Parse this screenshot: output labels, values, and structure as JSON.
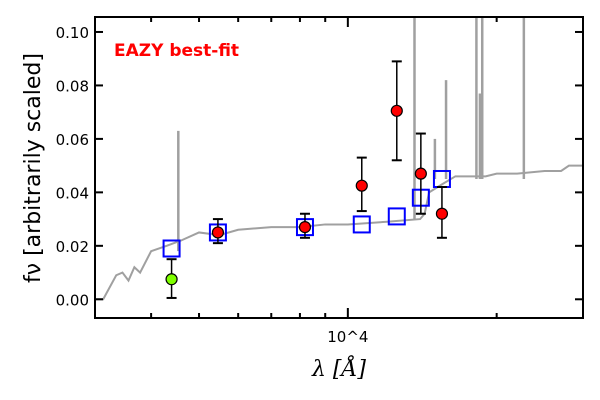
{
  "chart_data": {
    "type": "scatter",
    "title": "",
    "annotation": "EAZY best-fit",
    "xlabel": "λ [Å]",
    "ylabel": "fν [arbitrarily scaled]",
    "xscale": "log",
    "xlim": [
      3080,
      29900
    ],
    "ylim": [
      -0.007,
      0.1056
    ],
    "yticks": [
      0.0,
      0.02,
      0.04,
      0.06,
      0.08,
      0.1
    ],
    "ytick_labels": [
      "0.00",
      "0.02",
      "0.04",
      "0.06",
      "0.08",
      "0.10"
    ],
    "xtick_major_label": "10^4",
    "xticks_minor": [
      4000,
      5000,
      6000,
      7000,
      8000,
      9000,
      20000
    ],
    "colors": {
      "model": "#a0a0a0",
      "photometry": "#ff0000",
      "lowpoint": "#7fff00",
      "model_flux": "#0000ff",
      "annotation": "#ff0000"
    },
    "model_continuum": [
      [
        3080,
        0
      ],
      [
        3200,
        0
      ],
      [
        3400,
        0.009
      ],
      [
        3500,
        0.01
      ],
      [
        3600,
        0.007
      ],
      [
        3700,
        0.012
      ],
      [
        3800,
        0.01
      ],
      [
        4000,
        0.018
      ],
      [
        4300,
        0.02
      ],
      [
        4600,
        0.022
      ],
      [
        5000,
        0.025
      ],
      [
        5500,
        0.024
      ],
      [
        6000,
        0.026
      ],
      [
        7000,
        0.027
      ],
      [
        8000,
        0.027
      ],
      [
        9000,
        0.028
      ],
      [
        10000,
        0.028
      ],
      [
        12000,
        0.029
      ],
      [
        14000,
        0.03
      ],
      [
        14300,
        0.032
      ],
      [
        14600,
        0.04
      ],
      [
        15500,
        0.043
      ],
      [
        16500,
        0.046
      ],
      [
        18000,
        0.046
      ],
      [
        19000,
        0.046
      ],
      [
        20000,
        0.047
      ],
      [
        22000,
        0.047
      ],
      [
        25000,
        0.048
      ],
      [
        27000,
        0.048
      ],
      [
        28000,
        0.05
      ],
      [
        29900,
        0.05
      ]
    ],
    "emission_lines": [
      [
        4540,
        0.063
      ],
      [
        13640,
        0.2
      ],
      [
        15000,
        0.06
      ],
      [
        15800,
        0.082
      ],
      [
        18200,
        0.2
      ],
      [
        18500,
        0.077
      ],
      [
        18700,
        0.2
      ],
      [
        22700,
        0.2
      ]
    ],
    "photometry": [
      {
        "x": 4400,
        "y": 0.0075,
        "ylo": 0.0005,
        "yhi": 0.015,
        "upper_limit_style": true
      },
      {
        "x": 5460,
        "y": 0.025,
        "ylo": 0.021,
        "yhi": 0.03
      },
      {
        "x": 8190,
        "y": 0.027,
        "ylo": 0.023,
        "yhi": 0.032
      },
      {
        "x": 10670,
        "y": 0.0425,
        "ylo": 0.033,
        "yhi": 0.053
      },
      {
        "x": 12560,
        "y": 0.0705,
        "ylo": 0.052,
        "yhi": 0.089
      },
      {
        "x": 14050,
        "y": 0.047,
        "ylo": 0.032,
        "yhi": 0.062
      },
      {
        "x": 15500,
        "y": 0.032,
        "ylo": 0.023,
        "yhi": 0.042
      }
    ],
    "model_fluxes": [
      [
        4400,
        0.019
      ],
      [
        5460,
        0.025
      ],
      [
        8190,
        0.027
      ],
      [
        10670,
        0.028
      ],
      [
        12560,
        0.031
      ],
      [
        14050,
        0.038
      ],
      [
        15500,
        0.045
      ]
    ]
  }
}
